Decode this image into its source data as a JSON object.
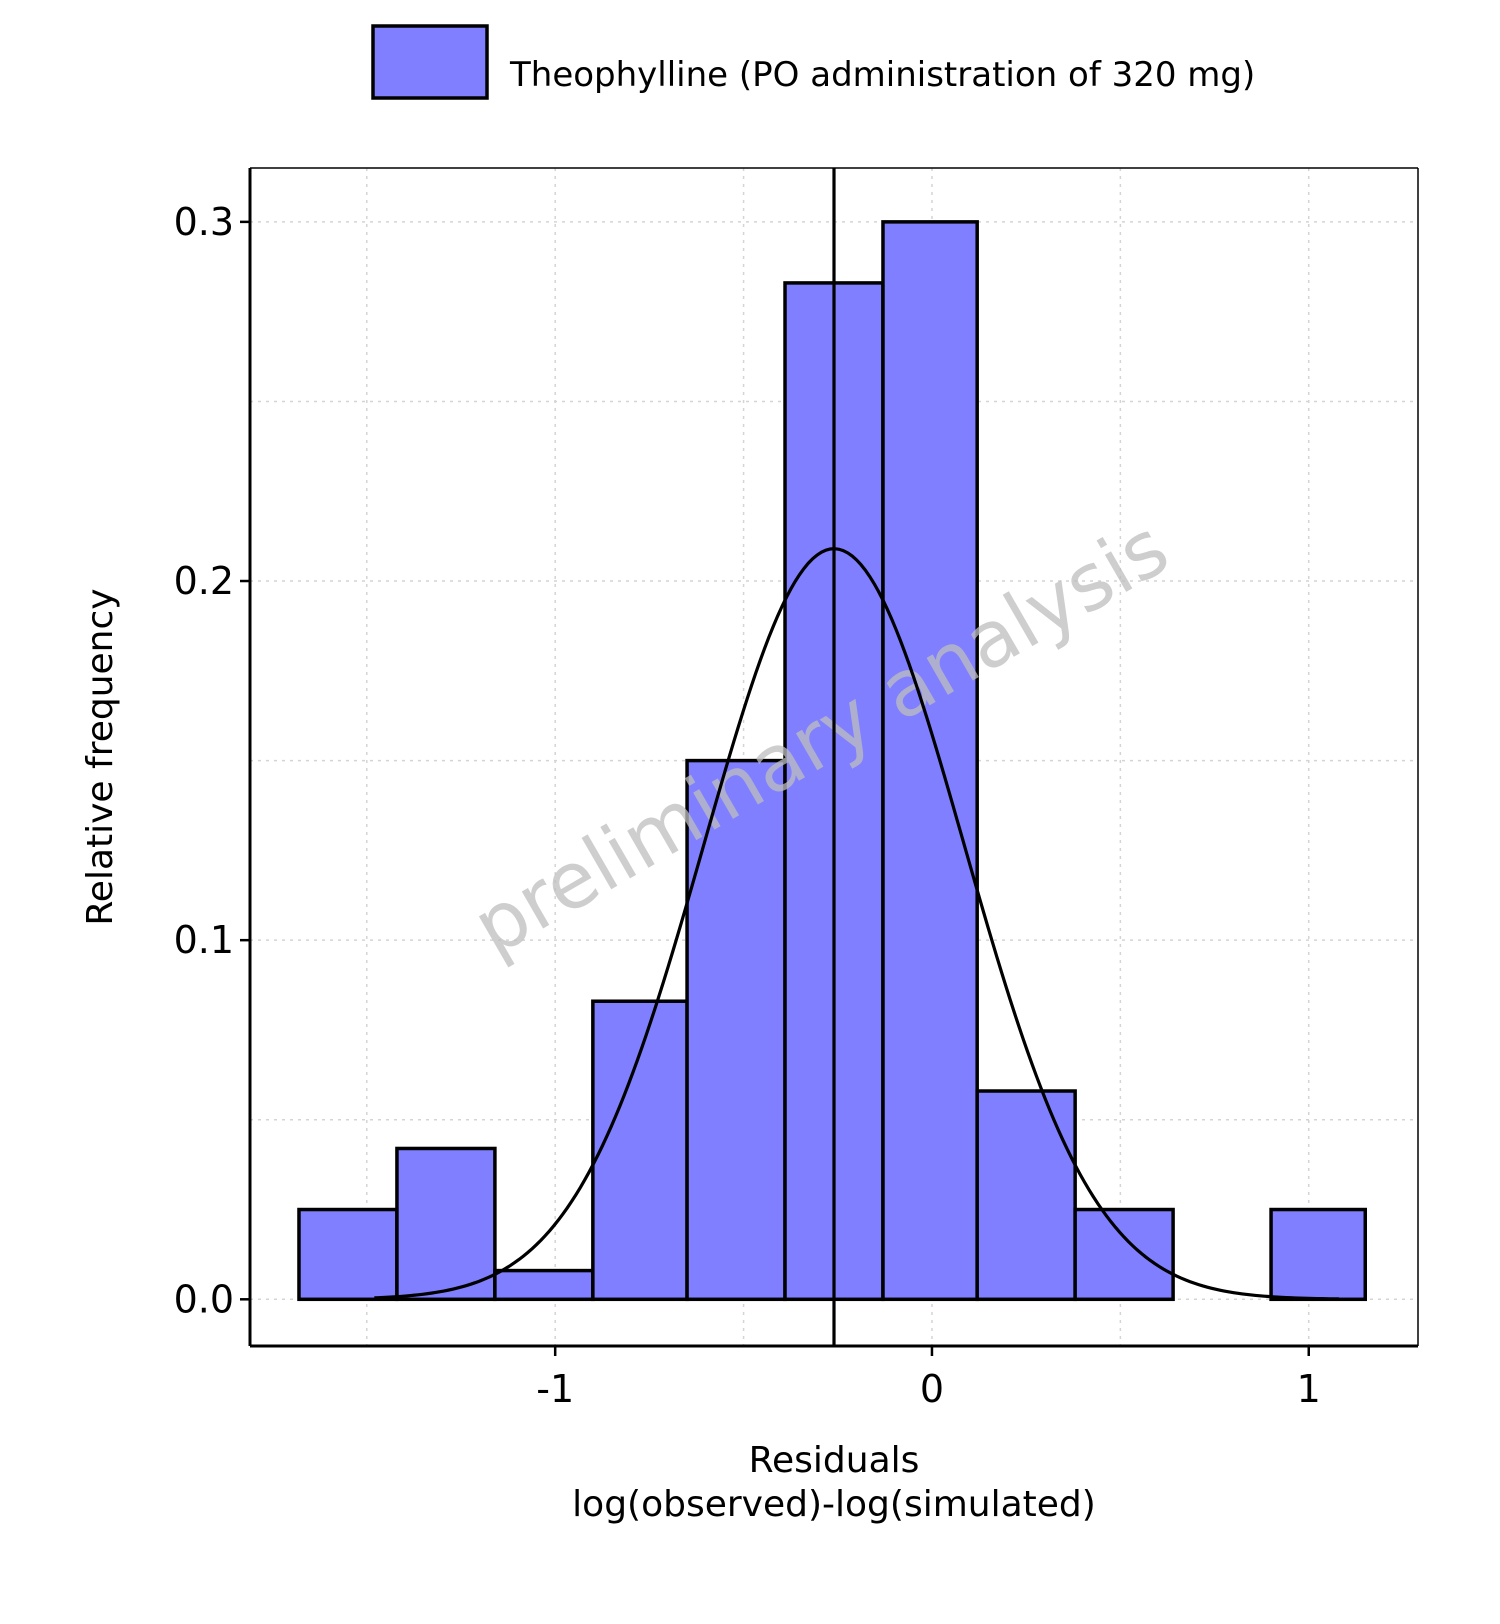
{
  "chart_data": {
    "type": "bar",
    "subtype": "histogram",
    "legend": {
      "position": "top",
      "entries": [
        {
          "label": "Theophylline (PO administration of 320 mg)",
          "color": "#7F7FFF"
        }
      ]
    },
    "bins": [
      {
        "x0": -1.68,
        "x1": -1.42,
        "value": 0.025
      },
      {
        "x0": -1.42,
        "x1": -1.16,
        "value": 0.042
      },
      {
        "x0": -1.16,
        "x1": -0.9,
        "value": 0.008
      },
      {
        "x0": -0.9,
        "x1": -0.65,
        "value": 0.083
      },
      {
        "x0": -0.65,
        "x1": -0.39,
        "value": 0.15
      },
      {
        "x0": -0.39,
        "x1": -0.13,
        "value": 0.283
      },
      {
        "x0": -0.13,
        "x1": 0.12,
        "value": 0.3
      },
      {
        "x0": 0.12,
        "x1": 0.38,
        "value": 0.058
      },
      {
        "x0": 0.38,
        "x1": 0.64,
        "value": 0.025
      },
      {
        "x0": 0.64,
        "x1": 0.9,
        "value": 0.0
      },
      {
        "x0": 0.9,
        "x1": 1.15,
        "value": 0.025
      }
    ],
    "normal_curve": {
      "mean": -0.26,
      "peak": 0.209,
      "sd": 0.345,
      "x_range": [
        -1.48,
        1.08
      ],
      "color": "#000000"
    },
    "vline": {
      "x": -0.26,
      "color": "#000000"
    },
    "xlabel": "Residuals\nlog(observed)-log(simulated)",
    "ylabel": "Relative frequency",
    "xlim": [
      -1.81,
      1.29
    ],
    "ylim": [
      -0.013,
      0.315
    ],
    "x_ticks": [
      {
        "value": -1,
        "label": "-1"
      },
      {
        "value": 0,
        "label": "0"
      },
      {
        "value": 1,
        "label": "1"
      }
    ],
    "y_ticks": [
      {
        "value": 0.0,
        "label": "0.0"
      },
      {
        "value": 0.1,
        "label": "0.1"
      },
      {
        "value": 0.2,
        "label": "0.2"
      },
      {
        "value": 0.3,
        "label": "0.3"
      }
    ],
    "x_minor_grid": [
      -1.5,
      -0.5,
      0.5
    ],
    "y_minor_grid": [
      0.05,
      0.15,
      0.25
    ],
    "grid": "dotted",
    "bar_fill": "#7F7FFF",
    "bar_edge": "#000000",
    "watermark": "preliminary analysis"
  }
}
